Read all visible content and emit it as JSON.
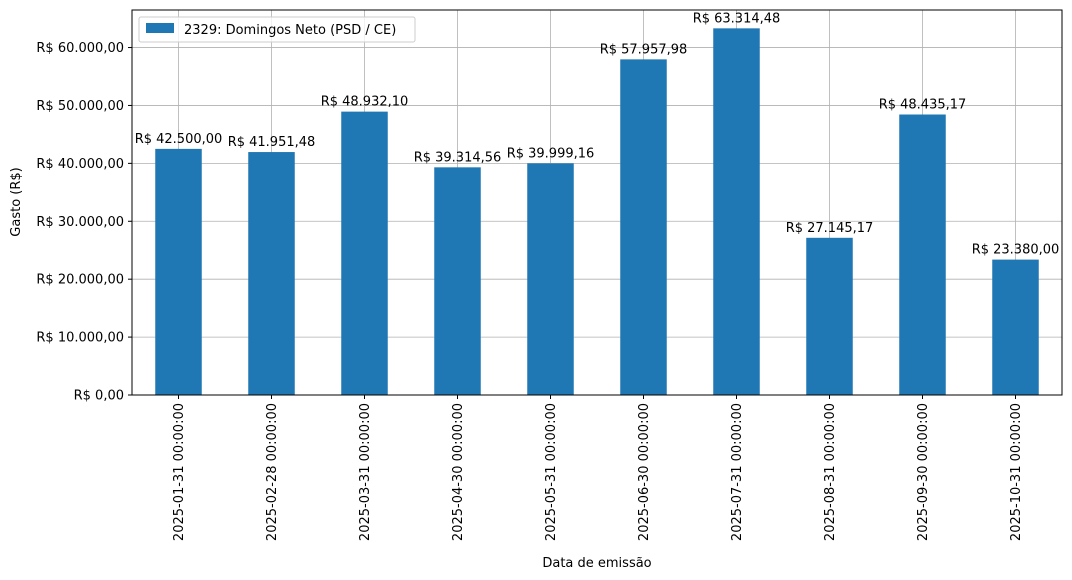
{
  "chart_data": {
    "type": "bar",
    "categories": [
      "2025-01-31 00:00:00",
      "2025-02-28 00:00:00",
      "2025-03-31 00:00:00",
      "2025-04-30 00:00:00",
      "2025-05-31 00:00:00",
      "2025-06-30 00:00:00",
      "2025-07-31 00:00:00",
      "2025-08-31 00:00:00",
      "2025-09-30 00:00:00",
      "2025-10-31 00:00:00"
    ],
    "series": [
      {
        "name": "2329: Domingos Neto (PSD / CE)",
        "color": "#1f77b4",
        "values": [
          42500.0,
          41951.48,
          48932.1,
          39314.56,
          39999.16,
          57957.98,
          63314.48,
          27145.17,
          48435.17,
          23380.0
        ],
        "labels": [
          "R$ 42.500,00",
          "R$ 41.951,48",
          "R$ 48.932,10",
          "R$ 39.314,56",
          "R$ 39.999,16",
          "R$ 57.957,98",
          "R$ 63.314,48",
          "R$ 27.145,17",
          "R$ 48.435,17",
          "R$ 23.380,00"
        ]
      }
    ],
    "title": "",
    "xlabel": "Data de emissão",
    "ylabel": "Gasto (R$)",
    "ylim": [
      0,
      66482
    ],
    "yticks": [
      0,
      10000,
      20000,
      30000,
      40000,
      50000,
      60000
    ],
    "ytick_labels": [
      "R$ 0,00",
      "R$ 10.000,00",
      "R$ 20.000,00",
      "R$ 30.000,00",
      "R$ 40.000,00",
      "R$ 50.000,00",
      "R$ 60.000,00"
    ],
    "grid": true,
    "legend_position": "upper-left"
  }
}
